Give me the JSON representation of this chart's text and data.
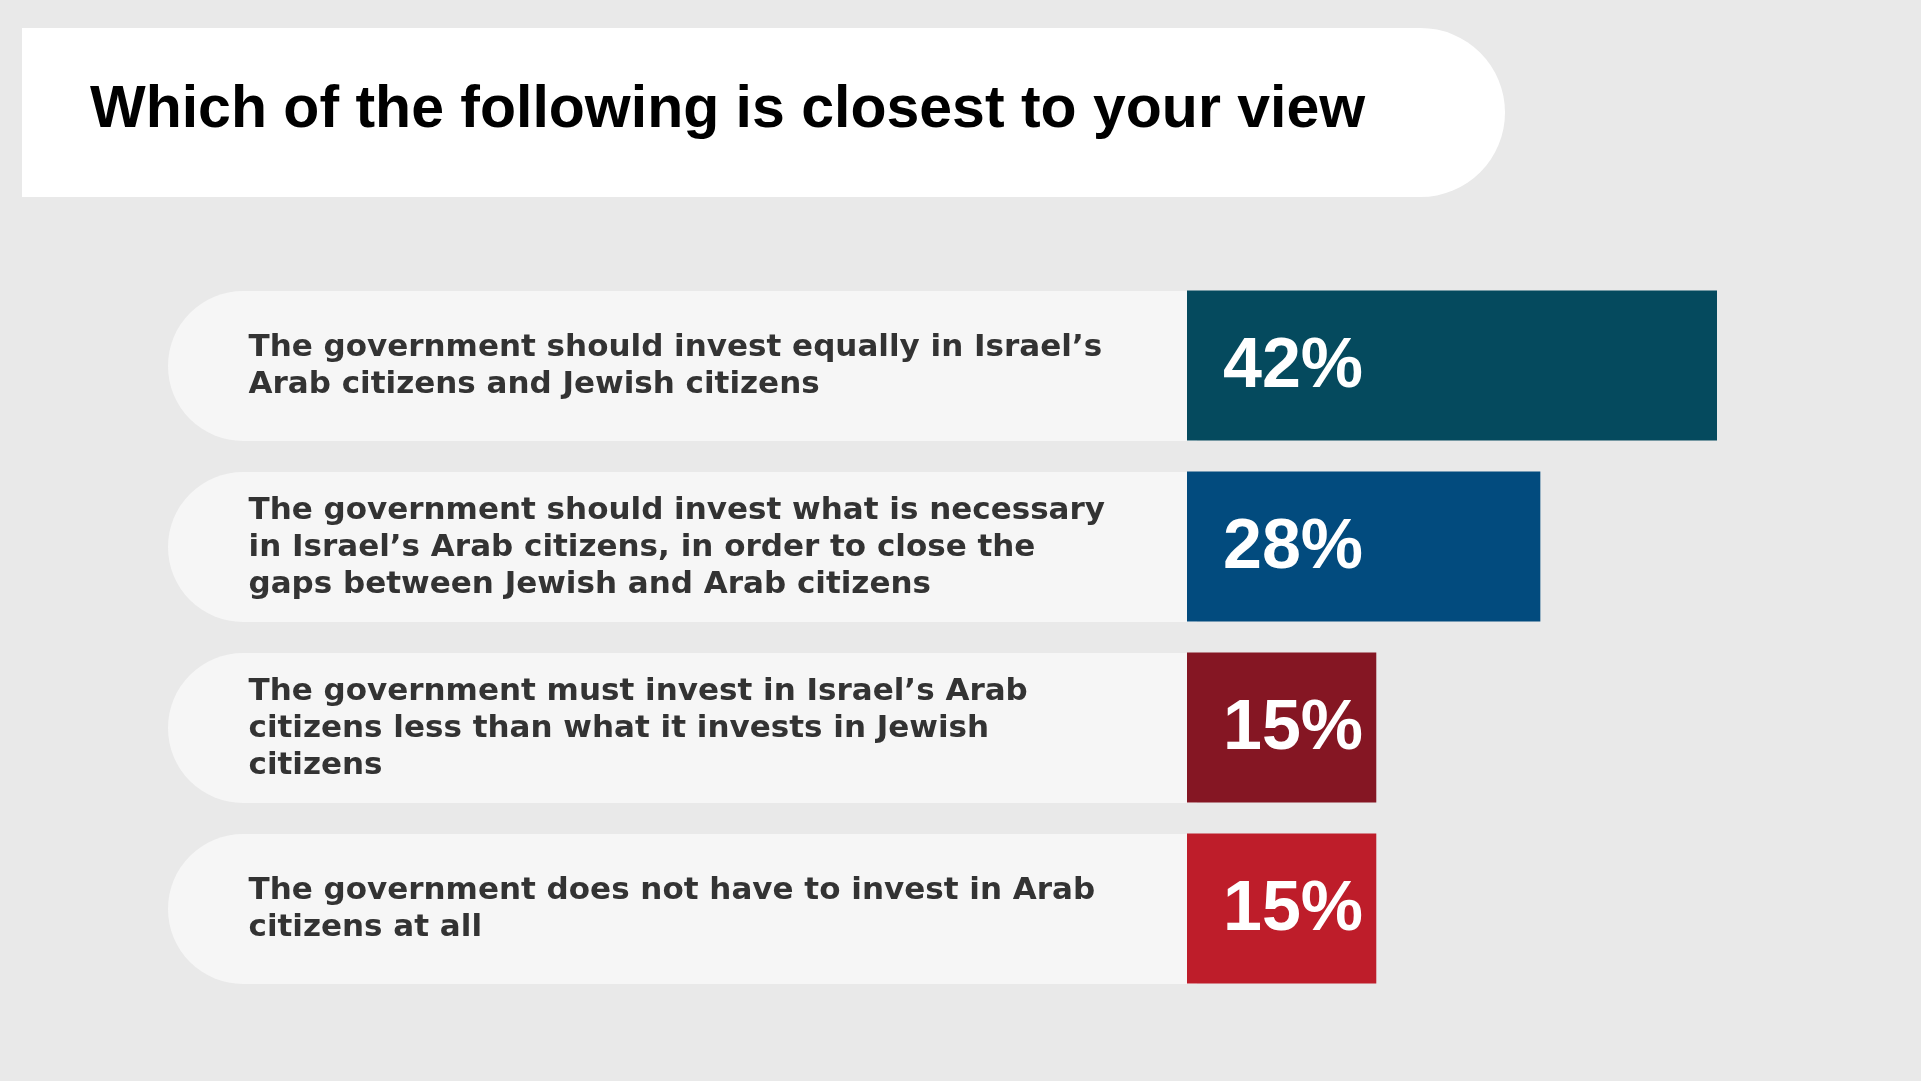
{
  "chart_data": {
    "type": "bar",
    "orientation": "horizontal",
    "title": "Which of the following is closest to your view",
    "categories": [
      "The government should invest equally in Israel’s Arab citizens and Jewish citizens",
      "The government should invest what is necessary in Israel’s Arab citizens, in order to close the gaps between Jewish and Arab citizens",
      "The government must invest in Israel’s Arab citizens less than what it invests in Jewish citizens",
      "The government does not have to invest in Arab citizens at all"
    ],
    "values": [
      42,
      28,
      15,
      15
    ],
    "colors": [
      "#054a5e",
      "#024b7e",
      "#851623",
      "#be1d2a"
    ],
    "value_labels": [
      "42%",
      "28%",
      "15%",
      "15%"
    ]
  }
}
